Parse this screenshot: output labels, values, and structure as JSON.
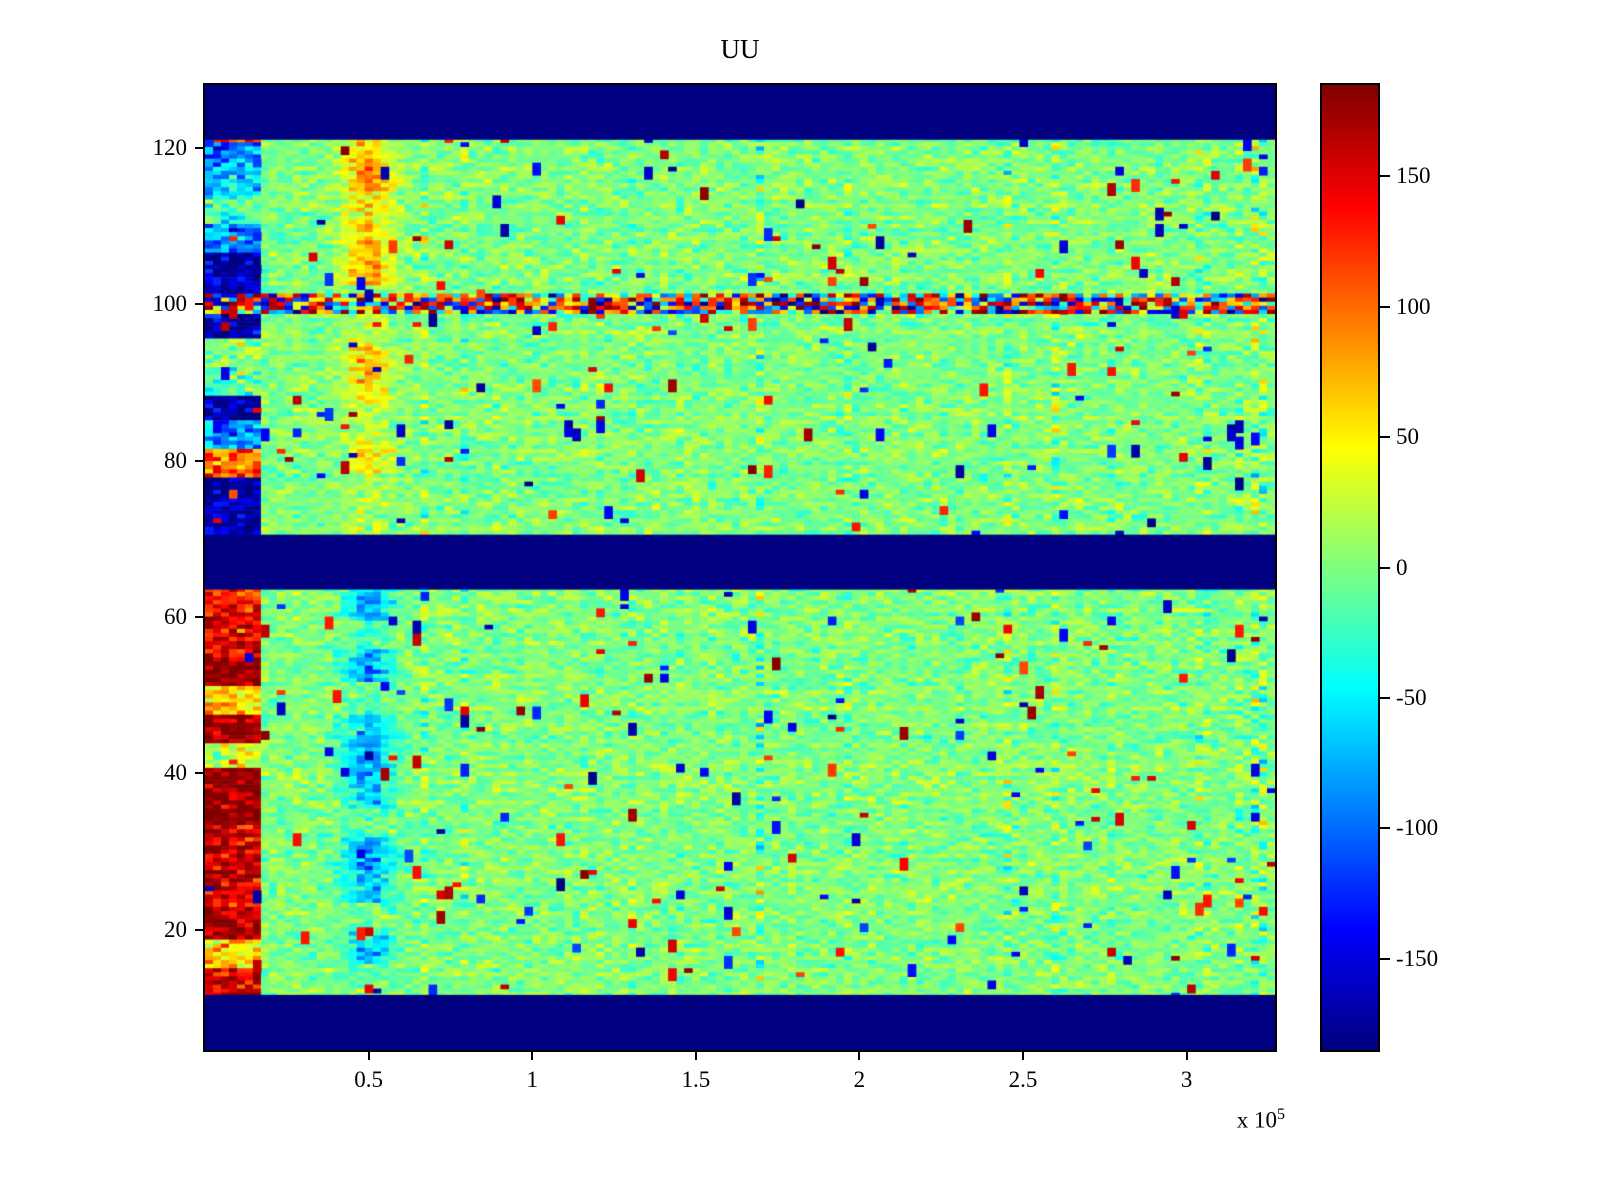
{
  "chart_data": {
    "type": "heatmap",
    "title": "UU",
    "x_axis": {
      "min": 0,
      "max": 327000,
      "ticks": [
        50000,
        100000,
        150000,
        200000,
        250000,
        300000
      ],
      "tick_labels": [
        "0.5",
        "1",
        "1.5",
        "2",
        "2.5",
        "3"
      ],
      "exponent_prefix": "x 10",
      "exponent": "5"
    },
    "y_axis": {
      "min": 4.65,
      "max": 128,
      "ticks": [
        20,
        40,
        60,
        80,
        100,
        120
      ],
      "tick_labels": [
        "20",
        "40",
        "60",
        "80",
        "100",
        "120"
      ]
    },
    "colorbar": {
      "min": -185,
      "max": 185,
      "ticks": [
        150,
        100,
        50,
        0,
        -50,
        -100,
        -150
      ],
      "tick_labels": [
        "150",
        "100",
        "50",
        "0",
        "-50",
        "-100",
        "-150"
      ],
      "colormap": "jet"
    },
    "grid": {
      "cols": 134,
      "rows": 236
    },
    "features": {
      "seed": 1337,
      "base_noise_sigma": 15,
      "dead_bands_y": [
        [
          121,
          128.2
        ],
        [
          63.5,
          70.5
        ],
        [
          4.5,
          11.7
        ]
      ],
      "noise_line": {
        "y_center": 100,
        "half_width": 1.2,
        "positive_bias": 0.58,
        "mag_min": 50,
        "mag_max": 190
      },
      "left_stripes": {
        "x_max": 17500,
        "stripe_height": 3.6,
        "upper_y": [
          70.5,
          121
        ],
        "lower_y": [
          11.7,
          63.5
        ]
      },
      "upper_blob": {
        "x_center": 50000,
        "x_sigma": 5200,
        "y_range": [
          70.5,
          121
        ],
        "amplitude": 80
      },
      "lower_blob": {
        "x_center": 50000,
        "x_sigma": 5200,
        "y_range": [
          11.7,
          63.5
        ],
        "amplitude": -75
      },
      "spikes": {
        "count": 430,
        "mag_min": 110,
        "mag_max": 185
      }
    }
  }
}
